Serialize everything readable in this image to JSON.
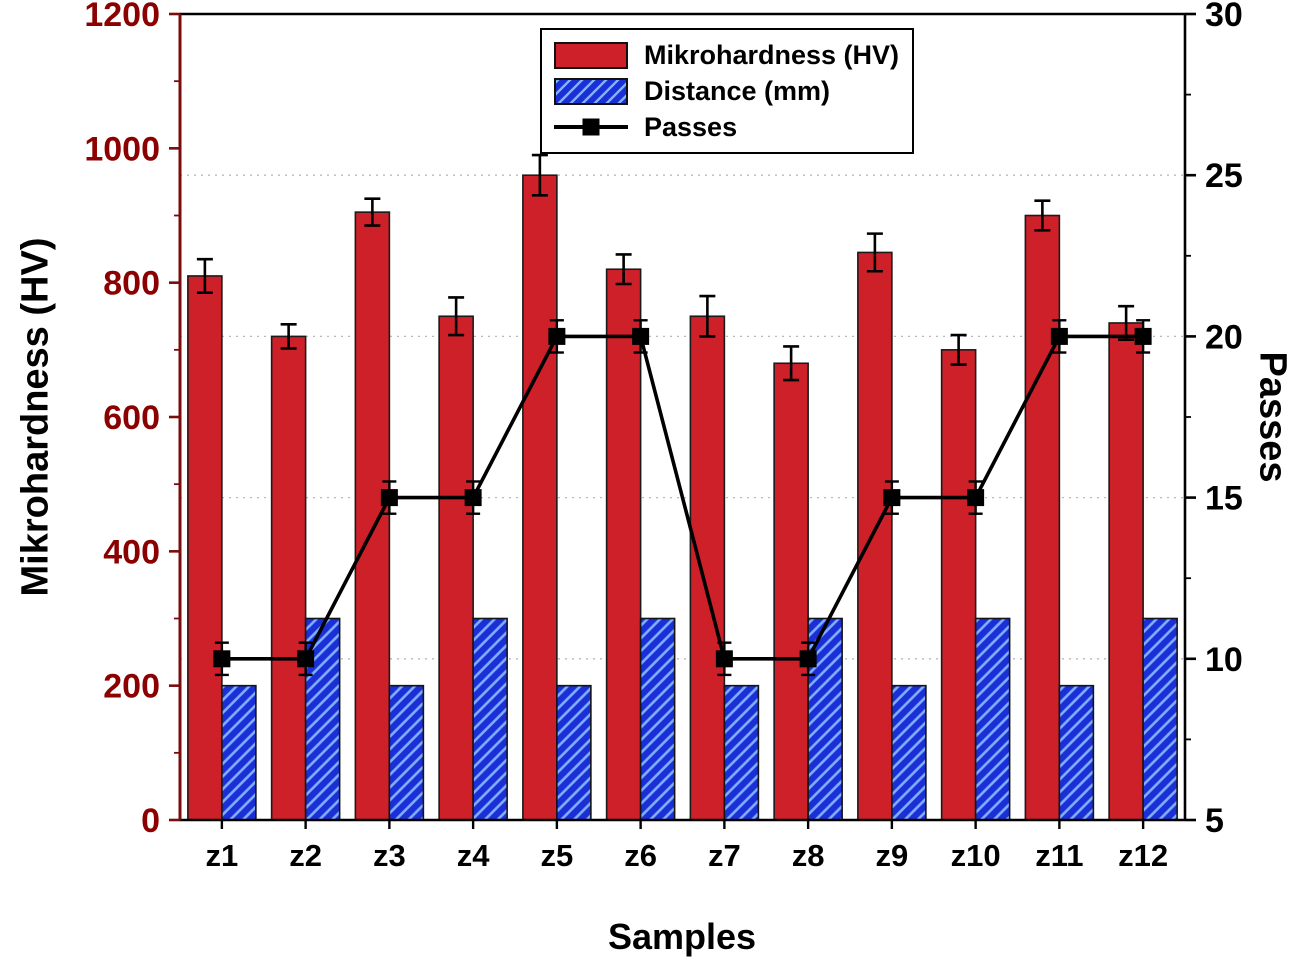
{
  "chart_data": {
    "type": "bar",
    "subtype": "grouped-bars-with-line-overlay",
    "title": "",
    "xlabel": "Samples",
    "ylabel_left": "Mikrohardness (HV)",
    "ylabel_right": "Passes",
    "categories": [
      "z1",
      "z2",
      "z3",
      "z4",
      "z5",
      "z6",
      "z7",
      "z8",
      "z9",
      "z10",
      "z11",
      "z12"
    ],
    "series": [
      {
        "name": "Mikrohardness (HV)",
        "type": "bar",
        "axis": "left",
        "color": "#ce2029",
        "values": [
          810,
          720,
          905,
          750,
          960,
          820,
          750,
          680,
          845,
          700,
          900,
          740
        ],
        "errors": [
          25,
          18,
          20,
          28,
          30,
          22,
          30,
          25,
          28,
          22,
          22,
          25
        ]
      },
      {
        "name": "Distance (mm)",
        "type": "bar",
        "axis": "left",
        "color": "#1c2fd6",
        "hatch_color": "#7fb0ff",
        "values": [
          200,
          300,
          200,
          300,
          200,
          300,
          200,
          300,
          200,
          300,
          200,
          300
        ]
      },
      {
        "name": "Passes",
        "type": "line",
        "axis": "right",
        "color": "#000000",
        "marker": "square",
        "values": [
          10,
          10,
          15,
          15,
          20,
          20,
          10,
          10,
          15,
          15,
          20,
          20
        ],
        "errors": [
          0.5,
          0.5,
          0.5,
          0.5,
          0.5,
          0.5,
          0.5,
          0.5,
          0.5,
          0.5,
          0.5,
          0.5
        ]
      }
    ],
    "left_axis": {
      "min": 0,
      "max": 1200,
      "ticks": [
        0,
        200,
        400,
        600,
        800,
        1000,
        1200
      ],
      "minor_step": 100,
      "color": "#8b0000",
      "spine_color": "#7a0c0c"
    },
    "right_axis": {
      "min": 5,
      "max": 30,
      "ticks": [
        5,
        10,
        15,
        20,
        25,
        30
      ],
      "minor_step": 2.5,
      "color": "#000000"
    },
    "grid": {
      "on": true,
      "at_right_ticks": [
        10,
        15,
        20,
        25
      ],
      "style": "dotted",
      "color": "#b9b9b9"
    },
    "legend": {
      "position": "top-center",
      "entries": [
        "Mikrohardness (HV)",
        "Distance (mm)",
        "Passes"
      ]
    }
  }
}
